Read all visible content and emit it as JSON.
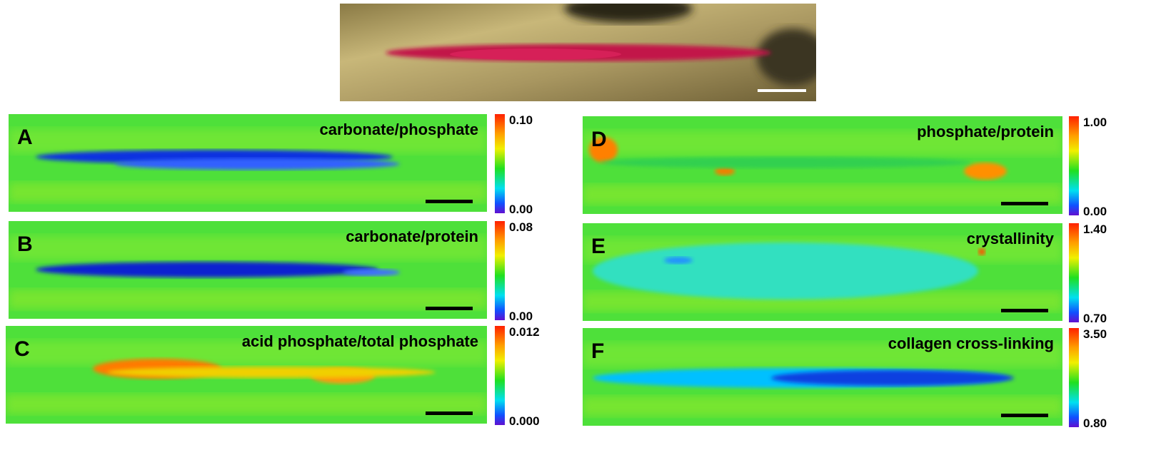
{
  "panels": [
    {
      "letter": "A",
      "title": "carbonate/phosphate",
      "scale_max": "0.10",
      "scale_min": "0.00"
    },
    {
      "letter": "B",
      "title": "carbonate/protein",
      "scale_max": "0.08",
      "scale_min": "0.00"
    },
    {
      "letter": "C",
      "title": "acid phosphate/total phosphate",
      "scale_max": "0.012",
      "scale_min": "0.000"
    },
    {
      "letter": "D",
      "title": "phosphate/protein",
      "scale_max": "1.00",
      "scale_min": "0.00"
    },
    {
      "letter": "E",
      "title": "crystallinity",
      "scale_max": "1.40",
      "scale_min": "0.70"
    },
    {
      "letter": "F",
      "title": "collagen cross-linking",
      "scale_max": "3.50",
      "scale_min": "0.80"
    }
  ]
}
